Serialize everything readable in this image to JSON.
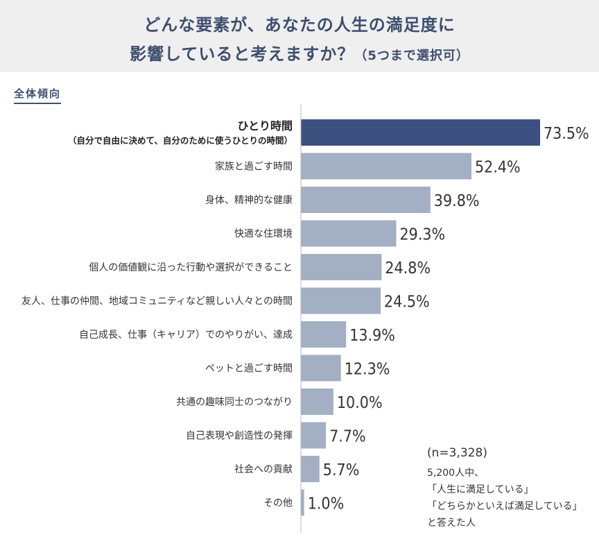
{
  "header": {
    "title_line1": "どんな要素が、あなたの人生の満足度に",
    "title_line2": "影響していると考えますか？",
    "title_note": "（5つまで選択可）"
  },
  "section_label": "全体傾向",
  "note": {
    "n": "(n=3,328)",
    "lines": [
      "5,200人中、",
      "「人生に満足している」",
      "「どちらかといえば満足している」",
      "と答えた人"
    ]
  },
  "colors": {
    "highlight": "#3d5080",
    "bar": "#a3afc2",
    "axis": "#bbbbbb",
    "title": "#3d4e6e"
  },
  "chart_data": {
    "type": "bar",
    "orientation": "horizontal",
    "unit": "%",
    "xlim": [
      0,
      100
    ],
    "categories": [
      [
        "ひとり時間",
        "（自分で自由に決めて、自分のために使うひとりの時間）"
      ],
      [
        "家族と過ごす時間"
      ],
      [
        "身体、精神的な健康"
      ],
      [
        "快適な住環境"
      ],
      [
        "個人の価値観に沿った行動や選択ができること"
      ],
      [
        "友人、仕事の仲間、地域コミュニティなど親しい人々との時間"
      ],
      [
        "自己成長、仕事（キャリア）でのやりがい、達成"
      ],
      [
        "ペットと過ごす時間"
      ],
      [
        "共通の趣味同士のつながり"
      ],
      [
        "自己表現や創造性の発揮"
      ],
      [
        "社会への貢献"
      ],
      [
        "その他"
      ]
    ],
    "values": [
      73.5,
      52.4,
      39.8,
      29.3,
      24.8,
      24.5,
      13.9,
      12.3,
      10.0,
      7.7,
      5.7,
      1.0
    ],
    "labels": [
      "73.5%",
      "52.4%",
      "39.8%",
      "29.3%",
      "24.8%",
      "24.5%",
      "13.9%",
      "12.3%",
      "10.0%",
      "7.7%",
      "5.7%",
      "1.0%"
    ],
    "highlight_index": 0
  }
}
